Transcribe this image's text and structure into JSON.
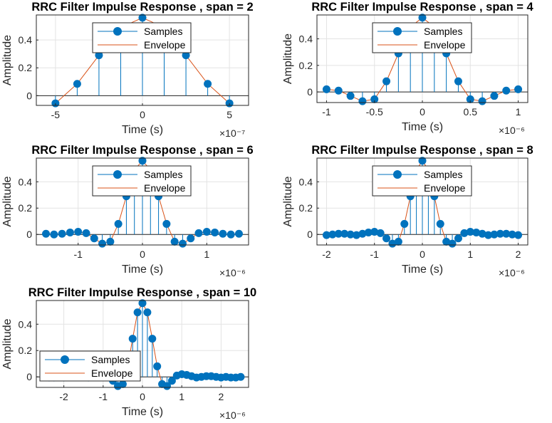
{
  "chart_data": [
    {
      "type": "line",
      "title": "RRC Filter Impulse Response , span = 2",
      "xlabel": "Time (s)",
      "ylabel": "Amplitude",
      "x_exponent_label": "×10⁻⁷",
      "xlim": [
        -6.1,
        6.1
      ],
      "ylim": [
        -0.07,
        0.58
      ],
      "xticks": [
        -5,
        0,
        5
      ],
      "yticks": [
        0,
        0.2,
        0.4
      ],
      "grid": true,
      "legend_position": "top-center",
      "x": [
        -5,
        -3.75,
        -2.5,
        -1.25,
        0,
        1.25,
        2.5,
        3.75,
        5
      ],
      "values": [
        -0.055,
        0.085,
        0.29,
        0.49,
        0.56,
        0.49,
        0.29,
        0.085,
        -0.055
      ],
      "series": [
        {
          "name": "Samples",
          "style": "stem",
          "color": "#0072BD"
        },
        {
          "name": "Envelope",
          "style": "line",
          "color": "#D95319"
        }
      ]
    },
    {
      "type": "line",
      "title": "RRC Filter Impulse Response , span = 4",
      "xlabel": "Time (s)",
      "ylabel": "Amplitude",
      "x_exponent_label": "×10⁻⁶",
      "xlim": [
        -1.1,
        1.1
      ],
      "ylim": [
        -0.08,
        0.58
      ],
      "xticks": [
        -1,
        -0.5,
        0,
        0.5,
        1
      ],
      "yticks": [
        0,
        0.2,
        0.4
      ],
      "grid": true,
      "legend_position": "top-center",
      "x": [
        -1.0,
        -0.875,
        -0.75,
        -0.625,
        -0.5,
        -0.375,
        -0.25,
        -0.125,
        0,
        0.125,
        0.25,
        0.375,
        0.5,
        0.625,
        0.75,
        0.875,
        1.0
      ],
      "values": [
        0.02,
        0.01,
        -0.03,
        -0.07,
        -0.055,
        0.08,
        0.29,
        0.49,
        0.56,
        0.49,
        0.29,
        0.08,
        -0.055,
        -0.07,
        -0.03,
        0.01,
        0.02
      ],
      "series": [
        {
          "name": "Samples",
          "style": "stem",
          "color": "#0072BD"
        },
        {
          "name": "Envelope",
          "style": "line",
          "color": "#D95319"
        }
      ]
    },
    {
      "type": "line",
      "title": "RRC Filter Impulse Response , span = 6",
      "xlabel": "Time (s)",
      "ylabel": "Amplitude",
      "x_exponent_label": "×10⁻⁶",
      "xlim": [
        -1.65,
        1.65
      ],
      "ylim": [
        -0.08,
        0.58
      ],
      "xticks": [
        -1,
        0,
        1
      ],
      "yticks": [
        0,
        0.2,
        0.4
      ],
      "grid": true,
      "legend_position": "top-center",
      "x": [
        -1.5,
        -1.375,
        -1.25,
        -1.125,
        -1.0,
        -0.875,
        -0.75,
        -0.625,
        -0.5,
        -0.375,
        -0.25,
        -0.125,
        0,
        0.125,
        0.25,
        0.375,
        0.5,
        0.625,
        0.75,
        0.875,
        1.0,
        1.125,
        1.25,
        1.375,
        1.5
      ],
      "values": [
        0.005,
        0.0,
        0.005,
        0.015,
        0.02,
        0.01,
        -0.03,
        -0.07,
        -0.055,
        0.08,
        0.29,
        0.49,
        0.56,
        0.49,
        0.29,
        0.08,
        -0.055,
        -0.07,
        -0.03,
        0.01,
        0.02,
        0.015,
        0.005,
        0.0,
        0.005
      ],
      "series": [
        {
          "name": "Samples",
          "style": "stem",
          "color": "#0072BD"
        },
        {
          "name": "Envelope",
          "style": "line",
          "color": "#D95319"
        }
      ]
    },
    {
      "type": "line",
      "title": "RRC Filter Impulse Response , span = 8",
      "xlabel": "Time (s)",
      "ylabel": "Amplitude",
      "x_exponent_label": "×10⁻⁶",
      "xlim": [
        -2.2,
        2.2
      ],
      "ylim": [
        -0.08,
        0.58
      ],
      "xticks": [
        -2,
        -1,
        0,
        1,
        2
      ],
      "yticks": [
        0,
        0.2,
        0.4
      ],
      "grid": true,
      "legend_position": "top-center",
      "x": [
        -2.0,
        -1.875,
        -1.75,
        -1.625,
        -1.5,
        -1.375,
        -1.25,
        -1.125,
        -1.0,
        -0.875,
        -0.75,
        -0.625,
        -0.5,
        -0.375,
        -0.25,
        -0.125,
        0,
        0.125,
        0.25,
        0.375,
        0.5,
        0.625,
        0.75,
        0.875,
        1.0,
        1.125,
        1.25,
        1.375,
        1.5,
        1.625,
        1.75,
        1.875,
        2.0
      ],
      "values": [
        -0.005,
        0.0,
        0.005,
        0.005,
        0.0,
        -0.005,
        0.005,
        0.015,
        0.02,
        0.01,
        -0.03,
        -0.07,
        -0.055,
        0.08,
        0.29,
        0.49,
        0.56,
        0.49,
        0.29,
        0.08,
        -0.055,
        -0.07,
        -0.03,
        0.01,
        0.02,
        0.015,
        0.005,
        -0.005,
        0.0,
        0.005,
        0.005,
        0.0,
        -0.005
      ],
      "series": [
        {
          "name": "Samples",
          "style": "stem",
          "color": "#0072BD"
        },
        {
          "name": "Envelope",
          "style": "line",
          "color": "#D95319"
        }
      ]
    },
    {
      "type": "line",
      "title": "RRC Filter Impulse Response , span = 10",
      "xlabel": "Time (s)",
      "ylabel": "Amplitude",
      "x_exponent_label": "×10⁻⁶",
      "xlim": [
        -2.7,
        2.7
      ],
      "ylim": [
        -0.08,
        0.58
      ],
      "xticks": [
        -2,
        -1,
        0,
        1,
        2
      ],
      "yticks": [
        0,
        0.2,
        0.4
      ],
      "grid": true,
      "legend_position": "bottom-left",
      "x": [
        -2.5,
        -2.375,
        -2.25,
        -2.125,
        -2.0,
        -1.875,
        -1.75,
        -1.625,
        -1.5,
        -1.375,
        -1.25,
        -1.125,
        -1.0,
        -0.875,
        -0.75,
        -0.625,
        -0.5,
        -0.375,
        -0.25,
        -0.125,
        0,
        0.125,
        0.25,
        0.375,
        0.5,
        0.625,
        0.75,
        0.875,
        1.0,
        1.125,
        1.25,
        1.375,
        1.5,
        1.625,
        1.75,
        1.875,
        2.0,
        2.125,
        2.25,
        2.375,
        2.5
      ],
      "values": [
        0.0,
        -0.005,
        -0.005,
        0.0,
        -0.005,
        0.0,
        0.005,
        0.005,
        0.0,
        -0.005,
        0.005,
        0.015,
        0.02,
        0.01,
        -0.03,
        -0.07,
        -0.055,
        0.08,
        0.29,
        0.49,
        0.56,
        0.49,
        0.29,
        0.08,
        -0.055,
        -0.07,
        -0.03,
        0.01,
        0.02,
        0.015,
        0.005,
        -0.005,
        0.0,
        0.005,
        0.005,
        0.0,
        -0.005,
        0.0,
        -0.005,
        -0.005,
        0.0
      ],
      "series": [
        {
          "name": "Samples",
          "style": "stem",
          "color": "#0072BD"
        },
        {
          "name": "Envelope",
          "style": "line",
          "color": "#D95319"
        }
      ]
    }
  ]
}
